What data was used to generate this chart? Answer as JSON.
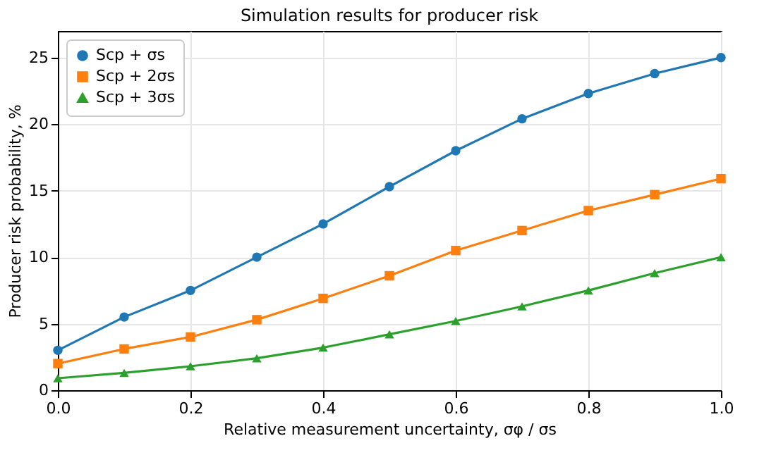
{
  "chart_data": {
    "type": "line",
    "title": "Simulation results for producer risk",
    "xlabel": "Relative measurement uncertainty, σφ / σs",
    "ylabel": "Producer risk probability, %",
    "x": [
      0,
      0.1,
      0.2,
      0.3,
      0.4,
      0.5,
      0.6,
      0.7,
      0.8,
      0.9,
      1.0
    ],
    "series": [
      {
        "name": "Scp + σs",
        "color": "#1f77b4",
        "marker": "circle",
        "values": [
          3.0,
          5.5,
          7.5,
          10.0,
          12.5,
          15.3,
          18.0,
          20.4,
          22.3,
          23.8,
          25.0
        ]
      },
      {
        "name": "Scp + 2σs",
        "color": "#ff7f0e",
        "marker": "square",
        "values": [
          2.0,
          3.1,
          4.0,
          5.3,
          6.9,
          8.6,
          10.5,
          12.0,
          13.5,
          14.7,
          15.9
        ]
      },
      {
        "name": "Scp + 3σs",
        "color": "#2ca02c",
        "marker": "triangle",
        "values": [
          0.9,
          1.3,
          1.8,
          2.4,
          3.2,
          4.2,
          5.2,
          6.3,
          7.5,
          8.8,
          10.0
        ]
      }
    ],
    "xlim": [
      0,
      1.0
    ],
    "xticks": [
      {
        "value": 0,
        "label": "0.0"
      },
      0.2,
      0.4,
      0.6,
      0.8,
      {
        "value": 1.0,
        "label": "1.0"
      }
    ],
    "ylim": [
      0,
      27
    ],
    "yticks": [
      0,
      5,
      10,
      15,
      20,
      25
    ],
    "grid": true,
    "legend": "top left",
    "line_style": "solid"
  }
}
